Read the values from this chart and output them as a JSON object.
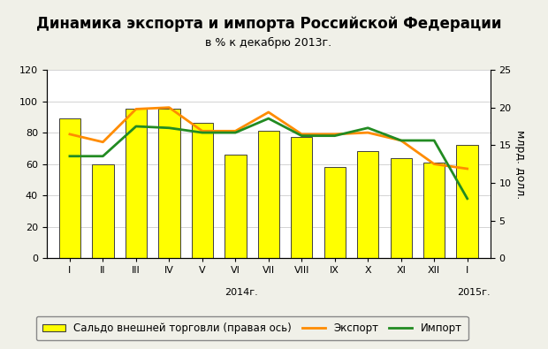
{
  "title": "Динамика экспорта и импорта Российской Федерации",
  "subtitle": "в % к декабрю 2013г.",
  "categories": [
    "I",
    "II",
    "III",
    "IV",
    "V",
    "VI",
    "VII",
    "VIII",
    "IX",
    "X",
    "XI",
    "XII",
    "I"
  ],
  "year_label_2014": "2014г.",
  "year_label_2015": "2015г.",
  "bar_values": [
    89,
    60,
    95,
    95,
    86,
    66,
    81,
    77,
    58,
    68,
    64,
    61,
    72
  ],
  "export_values": [
    79,
    74,
    95,
    96,
    81,
    81,
    93,
    79,
    79,
    80,
    75,
    60,
    57
  ],
  "import_values": [
    65,
    65,
    84,
    83,
    80,
    80,
    89,
    78,
    78,
    83,
    75,
    75,
    38
  ],
  "bar_color": "#FFFF00",
  "bar_edge_color": "#404040",
  "export_color": "#FF8C00",
  "import_color": "#228B22",
  "ylim_left": [
    0,
    120
  ],
  "ylim_right": [
    0,
    25
  ],
  "yticks_left": [
    0,
    20,
    40,
    60,
    80,
    100,
    120
  ],
  "yticks_right": [
    0,
    5,
    10,
    15,
    20,
    25
  ],
  "right_ylabel": "млрд. долл.",
  "legend_bar_label": "Сальдо внешней торговли (правая ось)",
  "legend_export_label": "Экспорт",
  "legend_import_label": "Импорт",
  "bg_color": "#F0F0E8",
  "plot_bg_color": "#FFFFFF",
  "title_fontsize": 12,
  "subtitle_fontsize": 9,
  "tick_fontsize": 8,
  "legend_fontsize": 8.5
}
